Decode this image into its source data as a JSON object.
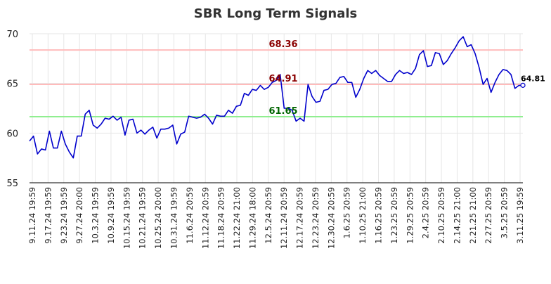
{
  "chart_data": {
    "type": "line",
    "title": "SBR Long Term Signals",
    "xlabel": "",
    "ylabel": "",
    "ylim": [
      55,
      70
    ],
    "yticks": [
      55,
      60,
      65,
      70
    ],
    "grid": true,
    "line_color": "#0000cc",
    "xtick_labels": [
      "9.11.24 19:59",
      "9.17.24 19:59",
      "9.23.24 19:59",
      "9.27.24 20:00",
      "10.3.24 19:59",
      "10.9.24 19:59",
      "10.15.24 19:59",
      "10.21.24 19:59",
      "10.25.24 20:00",
      "10.31.24 19:59",
      "11.6.24 20:59",
      "11.12.24 20:59",
      "11.18.24 20:59",
      "11.22.24 21:00",
      "11.29.24 18:00",
      "12.5.24 20:59",
      "12.11.24 20:59",
      "12.17.24 20:59",
      "12.23.24 20:59",
      "12.30.24 20:59",
      "1.6.25 20:59",
      "1.10.25 21:00",
      "1.16.25 20:59",
      "1.23.25 20:59",
      "1.29.25 20:59",
      "2.4.25 20:59",
      "2.10.25 20:59",
      "2.14.25 21:00",
      "2.21.25 21:00",
      "2.27.25 20:59",
      "3.5.25 20:59",
      "3.11.25 19:59"
    ],
    "reference_lines": [
      {
        "value": 68.36,
        "label": "68.36",
        "line_color": "#ffbbbb",
        "text_color": "#8b0000"
      },
      {
        "value": 64.91,
        "label": "64.91",
        "line_color": "#ffbbbb",
        "text_color": "#8b0000"
      },
      {
        "value": 61.65,
        "label": "61.65",
        "line_color": "#90ee90",
        "text_color": "#006400"
      }
    ],
    "last_value_label": "64.81",
    "values": [
      59.2,
      59.7,
      57.9,
      58.4,
      58.3,
      60.2,
      58.5,
      58.5,
      60.2,
      58.9,
      58.1,
      57.5,
      59.7,
      59.7,
      61.9,
      62.3,
      60.8,
      60.5,
      60.9,
      61.5,
      61.4,
      61.7,
      61.3,
      61.6,
      59.8,
      61.3,
      61.4,
      60.0,
      60.3,
      59.9,
      60.3,
      60.6,
      59.5,
      60.4,
      60.4,
      60.5,
      60.8,
      58.9,
      59.9,
      60.1,
      61.7,
      61.6,
      61.5,
      61.6,
      61.9,
      61.5,
      60.9,
      61.8,
      61.7,
      61.7,
      62.3,
      62.0,
      62.7,
      62.8,
      64.0,
      63.8,
      64.4,
      64.3,
      64.8,
      64.4,
      64.6,
      65.1,
      65.3,
      65.9,
      62.5,
      62.5,
      62.3,
      61.2,
      61.5,
      61.2,
      64.9,
      63.7,
      63.1,
      63.2,
      64.3,
      64.4,
      64.9,
      65.0,
      65.6,
      65.7,
      65.1,
      65.1,
      63.6,
      64.4,
      65.5,
      66.3,
      66.0,
      66.3,
      65.8,
      65.5,
      65.2,
      65.2,
      65.9,
      66.3,
      66.0,
      66.1,
      65.9,
      66.5,
      67.9,
      68.3,
      66.7,
      66.8,
      68.1,
      68.0,
      66.9,
      67.3,
      68.0,
      68.6,
      69.3,
      69.7,
      68.7,
      68.9,
      68.0,
      66.6,
      64.9,
      65.5,
      64.1,
      65.1,
      65.9,
      66.4,
      66.3,
      65.9,
      64.5,
      64.8,
      64.81
    ]
  }
}
